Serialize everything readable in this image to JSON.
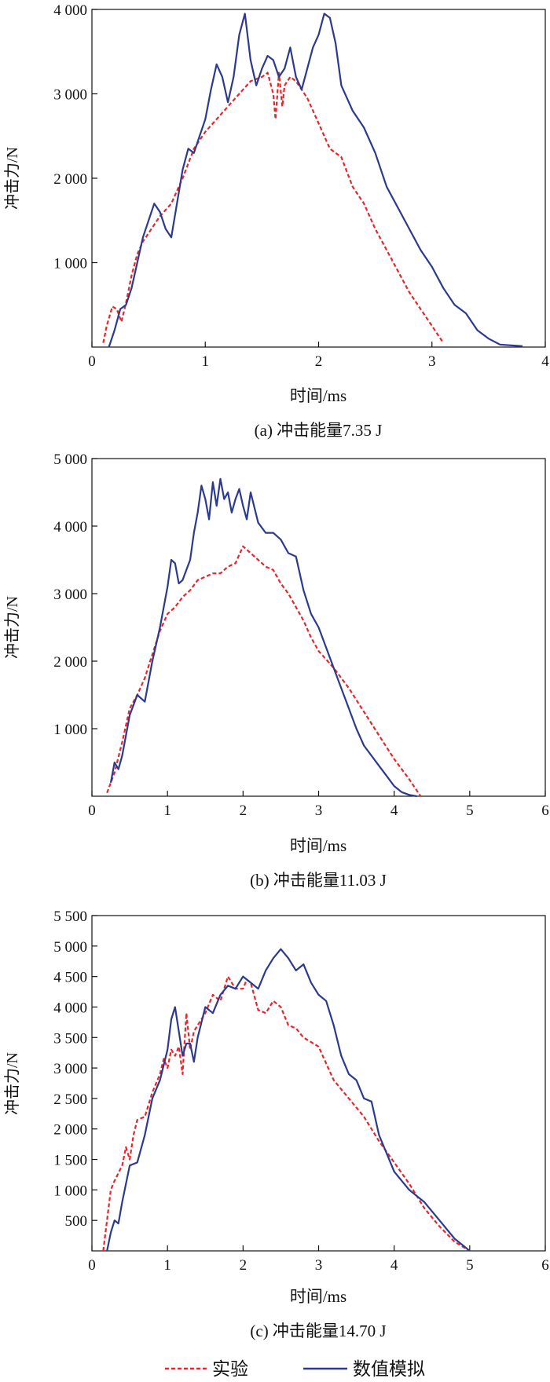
{
  "legend": {
    "experiment_label": "实验",
    "simulation_label": "数值模拟"
  },
  "colors": {
    "experiment": "#e8252b",
    "simulation": "#2b3a8f",
    "axis": "#111111"
  },
  "chart_data": [
    {
      "type": "line",
      "caption": "(a) 冲击能量7.35 J",
      "xlabel": "时间/ms",
      "ylabel": "冲击力/N",
      "xlim": [
        0,
        4
      ],
      "ylim": [
        0,
        4000
      ],
      "xticks": [
        0,
        1,
        2,
        3,
        4
      ],
      "xtick_labels": [
        "0",
        "1",
        "2",
        "3",
        "4"
      ],
      "yticks": [
        1000,
        2000,
        3000,
        4000
      ],
      "ytick_labels": [
        "1 000",
        "2 000",
        "3 000",
        "4 000"
      ],
      "grid": false,
      "series": [
        {
          "name": "实验",
          "style": "dashed",
          "x": [
            0.1,
            0.13,
            0.18,
            0.22,
            0.26,
            0.3,
            0.35,
            0.4,
            0.45,
            0.5,
            0.55,
            0.6,
            0.7,
            0.8,
            0.9,
            1.0,
            1.1,
            1.2,
            1.3,
            1.4,
            1.5,
            1.55,
            1.6,
            1.62,
            1.65,
            1.68,
            1.7,
            1.75,
            1.8,
            1.9,
            2.0,
            2.1,
            2.2,
            2.3,
            2.4,
            2.5,
            2.6,
            2.7,
            2.8,
            2.9,
            3.0,
            3.1
          ],
          "y": [
            50,
            250,
            480,
            450,
            300,
            520,
            850,
            1100,
            1250,
            1350,
            1450,
            1550,
            1700,
            2000,
            2350,
            2550,
            2700,
            2850,
            3000,
            3150,
            3200,
            3250,
            3000,
            2700,
            3250,
            2850,
            3100,
            3200,
            3150,
            2950,
            2650,
            2350,
            2250,
            1900,
            1700,
            1400,
            1150,
            900,
            650,
            450,
            250,
            50
          ]
        },
        {
          "name": "数值模拟",
          "style": "solid",
          "x": [
            0.15,
            0.2,
            0.25,
            0.3,
            0.35,
            0.4,
            0.45,
            0.5,
            0.55,
            0.6,
            0.65,
            0.7,
            0.75,
            0.8,
            0.85,
            0.9,
            0.95,
            1.0,
            1.05,
            1.1,
            1.15,
            1.2,
            1.25,
            1.3,
            1.35,
            1.4,
            1.45,
            1.5,
            1.55,
            1.6,
            1.65,
            1.7,
            1.75,
            1.8,
            1.85,
            1.9,
            1.95,
            2.0,
            2.05,
            2.1,
            2.15,
            2.2,
            2.3,
            2.4,
            2.5,
            2.6,
            2.7,
            2.8,
            2.9,
            3.0,
            3.1,
            3.2,
            3.3,
            3.4,
            3.5,
            3.6,
            3.8
          ],
          "y": [
            0,
            200,
            450,
            500,
            700,
            1000,
            1300,
            1500,
            1700,
            1600,
            1400,
            1300,
            1700,
            2100,
            2350,
            2300,
            2500,
            2700,
            3050,
            3350,
            3200,
            2900,
            3200,
            3700,
            3950,
            3400,
            3100,
            3300,
            3450,
            3400,
            3200,
            3300,
            3550,
            3200,
            3050,
            3300,
            3550,
            3700,
            3950,
            3900,
            3600,
            3100,
            2800,
            2600,
            2300,
            1900,
            1650,
            1400,
            1150,
            950,
            700,
            500,
            400,
            200,
            100,
            30,
            10
          ]
        }
      ]
    },
    {
      "type": "line",
      "caption": "(b) 冲击能量11.03 J",
      "xlabel": "时间/ms",
      "ylabel": "冲击力/N",
      "xlim": [
        0,
        6
      ],
      "ylim": [
        0,
        5000
      ],
      "xticks": [
        0,
        1,
        2,
        3,
        4,
        5,
        6
      ],
      "xtick_labels": [
        "0",
        "1",
        "2",
        "3",
        "4",
        "5",
        "6"
      ],
      "yticks": [
        1000,
        2000,
        3000,
        4000,
        5000
      ],
      "ytick_labels": [
        "1 000",
        "2 000",
        "3 000",
        "4 000",
        "5 000"
      ],
      "grid": false,
      "series": [
        {
          "name": "实验",
          "style": "dashed",
          "x": [
            0.2,
            0.3,
            0.4,
            0.5,
            0.6,
            0.7,
            0.8,
            0.9,
            1.0,
            1.1,
            1.2,
            1.3,
            1.4,
            1.5,
            1.6,
            1.7,
            1.8,
            1.9,
            2.0,
            2.1,
            2.2,
            2.3,
            2.4,
            2.5,
            2.6,
            2.7,
            2.8,
            2.9,
            3.0,
            3.2,
            3.4,
            3.6,
            3.8,
            4.0,
            4.2,
            4.35
          ],
          "y": [
            50,
            350,
            800,
            1300,
            1500,
            1750,
            2100,
            2450,
            2700,
            2800,
            2950,
            3050,
            3200,
            3250,
            3300,
            3300,
            3400,
            3450,
            3700,
            3600,
            3500,
            3400,
            3350,
            3150,
            3000,
            2800,
            2600,
            2350,
            2150,
            1900,
            1600,
            1250,
            900,
            550,
            250,
            0
          ]
        },
        {
          "name": "数值模拟",
          "style": "solid",
          "x": [
            0.25,
            0.3,
            0.35,
            0.4,
            0.5,
            0.6,
            0.7,
            0.8,
            0.9,
            1.0,
            1.05,
            1.1,
            1.15,
            1.2,
            1.3,
            1.35,
            1.4,
            1.45,
            1.5,
            1.55,
            1.6,
            1.65,
            1.7,
            1.75,
            1.8,
            1.85,
            1.9,
            1.95,
            2.0,
            2.05,
            2.1,
            2.2,
            2.3,
            2.4,
            2.5,
            2.6,
            2.7,
            2.8,
            2.9,
            3.0,
            3.1,
            3.2,
            3.3,
            3.4,
            3.5,
            3.6,
            3.7,
            3.8,
            3.9,
            4.0,
            4.1,
            4.2,
            4.3
          ],
          "y": [
            200,
            500,
            400,
            600,
            1200,
            1500,
            1400,
            2000,
            2500,
            3100,
            3500,
            3450,
            3150,
            3200,
            3500,
            3900,
            4200,
            4600,
            4400,
            4100,
            4650,
            4300,
            4700,
            4400,
            4500,
            4200,
            4400,
            4550,
            4300,
            4100,
            4500,
            4050,
            3900,
            3900,
            3800,
            3600,
            3550,
            3050,
            2700,
            2500,
            2200,
            1900,
            1600,
            1300,
            1000,
            750,
            600,
            450,
            300,
            150,
            60,
            20,
            0
          ]
        }
      ]
    },
    {
      "type": "line",
      "caption": "(c) 冲击能量14.70 J",
      "xlabel": "时间/ms",
      "ylabel": "冲击力/N",
      "xlim": [
        0,
        6
      ],
      "ylim": [
        0,
        5500
      ],
      "xticks": [
        0,
        1,
        2,
        3,
        4,
        5,
        6
      ],
      "xtick_labels": [
        "0",
        "1",
        "2",
        "3",
        "4",
        "5",
        "6"
      ],
      "yticks": [
        500,
        1000,
        1500,
        2000,
        2500,
        3000,
        3500,
        4000,
        4500,
        5000,
        5500
      ],
      "ytick_labels": [
        "500",
        "1 000",
        "1 500",
        "2 000",
        "2 500",
        "3 000",
        "3 500",
        "4 000",
        "4 500",
        "5 000",
        "5 500"
      ],
      "grid": false,
      "series": [
        {
          "name": "实验",
          "style": "dashed",
          "x": [
            0.15,
            0.2,
            0.25,
            0.3,
            0.4,
            0.45,
            0.5,
            0.55,
            0.6,
            0.7,
            0.8,
            0.9,
            0.95,
            1.0,
            1.05,
            1.1,
            1.15,
            1.2,
            1.25,
            1.3,
            1.35,
            1.4,
            1.5,
            1.6,
            1.7,
            1.8,
            1.9,
            2.0,
            2.05,
            2.1,
            2.2,
            2.3,
            2.4,
            2.5,
            2.6,
            2.7,
            2.8,
            3.0,
            3.2,
            3.4,
            3.6,
            3.8,
            4.0,
            4.2,
            4.4,
            4.6,
            4.8,
            5.0
          ],
          "y": [
            0,
            500,
            1000,
            1150,
            1400,
            1700,
            1500,
            1900,
            2150,
            2200,
            2600,
            2900,
            3150,
            3000,
            3300,
            3200,
            3350,
            2900,
            3900,
            3300,
            3600,
            3700,
            3900,
            4200,
            4100,
            4500,
            4300,
            4300,
            4450,
            4400,
            3950,
            3900,
            4100,
            4000,
            3700,
            3650,
            3500,
            3350,
            2800,
            2500,
            2200,
            1800,
            1450,
            1100,
            700,
            400,
            150,
            0
          ]
        },
        {
          "name": "数值模拟",
          "style": "solid",
          "x": [
            0.2,
            0.25,
            0.3,
            0.35,
            0.4,
            0.5,
            0.6,
            0.7,
            0.8,
            0.9,
            1.0,
            1.05,
            1.1,
            1.15,
            1.2,
            1.25,
            1.3,
            1.35,
            1.4,
            1.5,
            1.6,
            1.7,
            1.8,
            1.9,
            2.0,
            2.1,
            2.2,
            2.3,
            2.4,
            2.5,
            2.6,
            2.7,
            2.8,
            2.9,
            3.0,
            3.1,
            3.2,
            3.3,
            3.4,
            3.5,
            3.6,
            3.7,
            3.8,
            3.9,
            4.0,
            4.2,
            4.4,
            4.6,
            4.8,
            5.0
          ],
          "y": [
            0,
            300,
            500,
            450,
            800,
            1400,
            1450,
            1900,
            2500,
            2800,
            3300,
            3800,
            4000,
            3600,
            3200,
            3400,
            3400,
            3100,
            3500,
            4000,
            3900,
            4200,
            4350,
            4300,
            4500,
            4400,
            4300,
            4600,
            4800,
            4950,
            4800,
            4600,
            4700,
            4400,
            4200,
            4100,
            3700,
            3200,
            2900,
            2800,
            2500,
            2450,
            1900,
            1600,
            1300,
            1000,
            800,
            500,
            200,
            0
          ]
        }
      ]
    }
  ]
}
